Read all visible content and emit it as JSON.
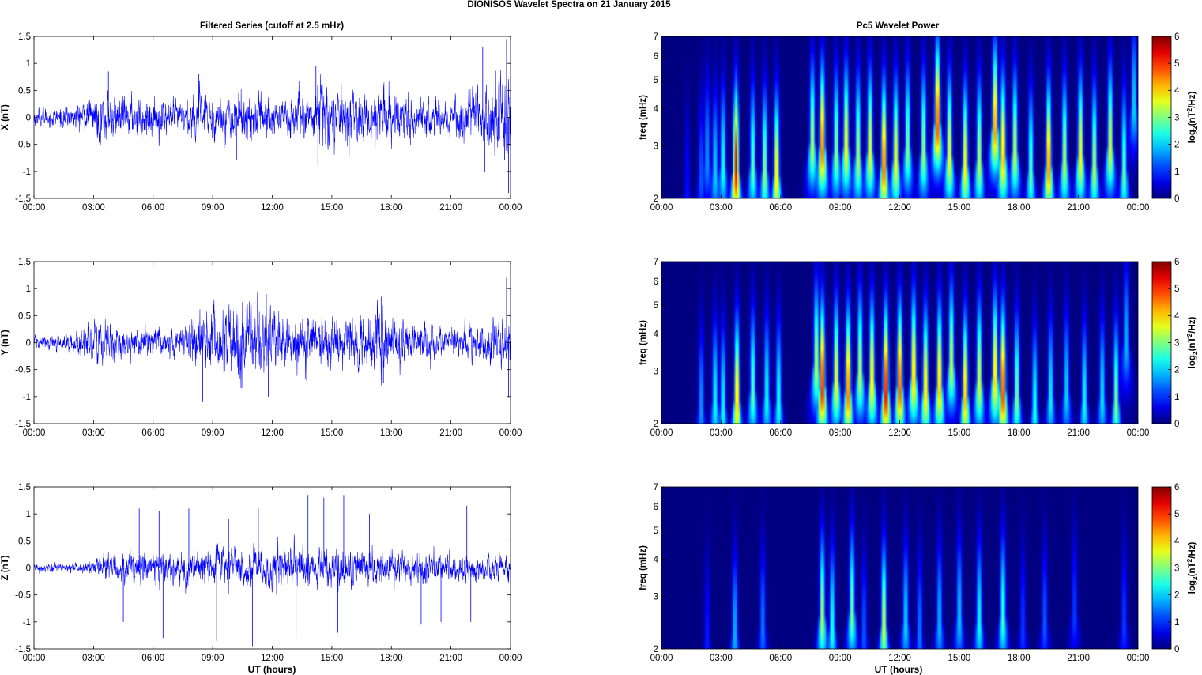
{
  "figure": {
    "title": "DIONISOS Wavelet Spectra on 21 January   2015",
    "left_title": "Filtered Series (cutoff at 2.5 mHz)",
    "right_title": "Pc5 Wavelet Power",
    "xlabel": "UT (hours)",
    "colorbar_label": "log2(nT2/Hz)"
  },
  "chart_data": [
    {
      "type": "line",
      "ylabel": "X (nT)",
      "xlim": [
        0,
        24
      ],
      "ylim": [
        -1.5,
        1.5
      ],
      "xticks": [
        "00:00",
        "03:00",
        "06:00",
        "09:00",
        "12:00",
        "15:00",
        "18:00",
        "21:00",
        "00:00"
      ],
      "yticks": [
        "1.5",
        "1",
        "0.5",
        "0",
        "-0.5",
        "-1",
        "-1.5"
      ],
      "series": [
        {
          "color": "#0000ff",
          "envelope": [
            [
              0,
              0.15
            ],
            [
              2,
              0.2
            ],
            [
              2.6,
              0.3
            ],
            [
              3.7,
              0.5
            ],
            [
              4,
              0.35
            ],
            [
              6,
              0.35
            ],
            [
              7.5,
              0.25
            ],
            [
              8.3,
              0.45
            ],
            [
              9.5,
              0.35
            ],
            [
              10.5,
              0.45
            ],
            [
              12,
              0.4
            ],
            [
              14,
              0.4
            ],
            [
              14.4,
              0.8
            ],
            [
              15,
              0.45
            ],
            [
              17,
              0.45
            ],
            [
              17.4,
              0.6
            ],
            [
              18,
              0.4
            ],
            [
              21,
              0.35
            ],
            [
              22.5,
              0.5
            ],
            [
              23,
              0.6
            ],
            [
              23.6,
              0.7
            ],
            [
              24,
              0.6
            ]
          ],
          "spikes": [
            [
              3.75,
              0.85
            ],
            [
              8.3,
              0.8
            ],
            [
              14.2,
              0.95
            ],
            [
              14.3,
              -0.9
            ],
            [
              10.2,
              -0.8
            ],
            [
              22.6,
              1.3
            ],
            [
              22.7,
              -1.0
            ],
            [
              23.8,
              1.45
            ],
            [
              23.9,
              -1.4
            ],
            [
              23.7,
              -0.8
            ]
          ]
        }
      ]
    },
    {
      "type": "line",
      "ylabel": "Y (nT)",
      "xlim": [
        0,
        24
      ],
      "ylim": [
        -1.5,
        1.5
      ],
      "xticks": [
        "00:00",
        "03:00",
        "06:00",
        "09:00",
        "12:00",
        "15:00",
        "18:00",
        "21:00",
        "00:00"
      ],
      "yticks": [
        "1.5",
        "1",
        "0.5",
        "0",
        "-0.5",
        "-1",
        "-1.5"
      ],
      "series": [
        {
          "color": "#0000ff",
          "envelope": [
            [
              0,
              0.1
            ],
            [
              2,
              0.15
            ],
            [
              2.5,
              0.3
            ],
            [
              3.7,
              0.45
            ],
            [
              4.5,
              0.25
            ],
            [
              7.5,
              0.25
            ],
            [
              8.2,
              0.55
            ],
            [
              9.5,
              0.6
            ],
            [
              10.5,
              0.7
            ],
            [
              11.5,
              0.75
            ],
            [
              12.5,
              0.5
            ],
            [
              14,
              0.45
            ],
            [
              17,
              0.5
            ],
            [
              17.4,
              0.7
            ],
            [
              18,
              0.45
            ],
            [
              21,
              0.25
            ],
            [
              23,
              0.4
            ],
            [
              24,
              0.5
            ]
          ],
          "spikes": [
            [
              8.5,
              -1.1
            ],
            [
              11.7,
              0.9
            ],
            [
              11.8,
              -1.0
            ],
            [
              17.5,
              0.85
            ],
            [
              17.6,
              -0.75
            ],
            [
              23.8,
              1.2
            ],
            [
              23.9,
              -1.0
            ]
          ]
        }
      ]
    },
    {
      "type": "line",
      "ylabel": "Z (nT)",
      "xlim": [
        0,
        24
      ],
      "ylim": [
        -1.5,
        1.5
      ],
      "xticks": [
        "00:00",
        "03:00",
        "06:00",
        "09:00",
        "12:00",
        "15:00",
        "18:00",
        "21:00",
        "00:00"
      ],
      "yticks": [
        "1.5",
        "1",
        "0.5",
        "0",
        "-0.5",
        "-1",
        "-1.5"
      ],
      "series": [
        {
          "color": "#0000ff",
          "envelope": [
            [
              0,
              0.07
            ],
            [
              3,
              0.1
            ],
            [
              3.6,
              0.25
            ],
            [
              5,
              0.3
            ],
            [
              8,
              0.3
            ],
            [
              10,
              0.35
            ],
            [
              12,
              0.35
            ],
            [
              15,
              0.35
            ],
            [
              18,
              0.3
            ],
            [
              21,
              0.25
            ],
            [
              24,
              0.25
            ]
          ],
          "spikes": [
            [
              5.3,
              1.1
            ],
            [
              6.3,
              1.05
            ],
            [
              7.8,
              1.1
            ],
            [
              9.8,
              0.9
            ],
            [
              11.3,
              1.1
            ],
            [
              11.0,
              -1.45
            ],
            [
              12.8,
              1.25
            ],
            [
              13.8,
              1.35
            ],
            [
              14.6,
              1.3
            ],
            [
              15.6,
              1.35
            ],
            [
              6.5,
              -1.3
            ],
            [
              9.2,
              -1.35
            ],
            [
              13.2,
              -1.3
            ],
            [
              15.3,
              -1.2
            ],
            [
              21.8,
              1.15
            ],
            [
              22.0,
              -1.0
            ],
            [
              16.9,
              1.0
            ],
            [
              19.5,
              -1.05
            ],
            [
              20.5,
              -1.0
            ],
            [
              4.5,
              -1.0
            ]
          ]
        }
      ]
    },
    {
      "type": "heatmap",
      "ylabel": "freq (mHz)",
      "yscale": "log",
      "xlim": [
        0,
        24
      ],
      "ylim": [
        2,
        7
      ],
      "yticks": [
        "2",
        "3",
        "4",
        "5",
        "6",
        "7"
      ],
      "clim": [
        0,
        6
      ],
      "colorbar_ticks": [
        "6",
        "5",
        "4",
        "3",
        "2",
        "1",
        "0"
      ],
      "features": [
        [
          1.3,
          2.2,
          0.9
        ],
        [
          2.0,
          2.4,
          1.4
        ],
        [
          2.3,
          2.8,
          1.8
        ],
        [
          2.7,
          2.5,
          2.2
        ],
        [
          3.1,
          2.6,
          2.6
        ],
        [
          3.75,
          2.5,
          5.5
        ],
        [
          4.6,
          2.6,
          3.0
        ],
        [
          5.2,
          2.5,
          3.3
        ],
        [
          5.8,
          2.4,
          4.2
        ],
        [
          7.6,
          3.1,
          3.5
        ],
        [
          8.1,
          3.0,
          5.0
        ],
        [
          8.8,
          2.9,
          3.3
        ],
        [
          9.3,
          3.0,
          4.0
        ],
        [
          9.9,
          2.8,
          3.5
        ],
        [
          10.5,
          2.9,
          4.0
        ],
        [
          11.2,
          2.6,
          5.0
        ],
        [
          11.8,
          2.7,
          4.0
        ],
        [
          12.4,
          3.0,
          3.2
        ],
        [
          13.2,
          2.9,
          3.4
        ],
        [
          13.9,
          3.6,
          5.2
        ],
        [
          14.5,
          2.8,
          4.0
        ],
        [
          15.3,
          2.6,
          4.2
        ],
        [
          16.0,
          2.7,
          3.6
        ],
        [
          16.8,
          3.5,
          4.8
        ],
        [
          17.2,
          2.8,
          4.5
        ],
        [
          17.8,
          2.9,
          3.6
        ],
        [
          18.6,
          2.5,
          3.0
        ],
        [
          19.5,
          2.6,
          4.8
        ],
        [
          20.3,
          2.7,
          3.5
        ],
        [
          21.1,
          2.8,
          4.1
        ],
        [
          21.8,
          2.6,
          3.5
        ],
        [
          22.6,
          3.0,
          3.8
        ],
        [
          23.3,
          2.5,
          3.0
        ],
        [
          23.8,
          4.2,
          2.2
        ]
      ]
    },
    {
      "type": "heatmap",
      "ylabel": "freq (mHz)",
      "yscale": "log",
      "xlim": [
        0,
        24
      ],
      "ylim": [
        2,
        7
      ],
      "yticks": [
        "2",
        "3",
        "4",
        "5",
        "6",
        "7"
      ],
      "clim": [
        0,
        6
      ],
      "colorbar_ticks": [
        "6",
        "5",
        "4",
        "3",
        "2",
        "1",
        "0"
      ],
      "features": [
        [
          2.0,
          2.3,
          1.8
        ],
        [
          2.7,
          2.4,
          2.5
        ],
        [
          3.1,
          2.3,
          2.5
        ],
        [
          3.8,
          2.4,
          4.4
        ],
        [
          4.6,
          2.6,
          3.0
        ],
        [
          5.3,
          2.5,
          2.5
        ],
        [
          5.9,
          2.4,
          2.6
        ],
        [
          7.8,
          3.2,
          3.5
        ],
        [
          8.1,
          2.7,
          5.5
        ],
        [
          8.8,
          2.8,
          4.0
        ],
        [
          9.4,
          2.6,
          5.0
        ],
        [
          10.0,
          3.0,
          3.6
        ],
        [
          10.6,
          2.8,
          4.2
        ],
        [
          11.3,
          2.6,
          5.7
        ],
        [
          12.0,
          2.7,
          5.2
        ],
        [
          12.7,
          2.9,
          4.4
        ],
        [
          13.3,
          2.6,
          4.3
        ],
        [
          14.0,
          2.7,
          4.5
        ],
        [
          14.6,
          3.2,
          3.6
        ],
        [
          15.3,
          2.5,
          4.6
        ],
        [
          16.0,
          2.8,
          3.8
        ],
        [
          16.8,
          2.9,
          4.4
        ],
        [
          17.2,
          2.6,
          5.3
        ],
        [
          17.9,
          2.5,
          3.2
        ],
        [
          18.8,
          2.3,
          2.6
        ],
        [
          19.6,
          2.5,
          2.4
        ],
        [
          20.4,
          2.6,
          2.2
        ],
        [
          21.3,
          2.4,
          2.5
        ],
        [
          22.2,
          2.5,
          2.3
        ],
        [
          22.9,
          2.4,
          3.2
        ],
        [
          23.4,
          3.8,
          2.0
        ]
      ]
    },
    {
      "type": "heatmap",
      "ylabel": "freq (mHz)",
      "yscale": "log",
      "xlim": [
        0,
        24
      ],
      "ylim": [
        2,
        7
      ],
      "yticks": [
        "2",
        "3",
        "4",
        "5",
        "6",
        "7"
      ],
      "clim": [
        0,
        6
      ],
      "colorbar_ticks": [
        "6",
        "5",
        "4",
        "3",
        "2",
        "1",
        "0"
      ],
      "features": [
        [
          2.3,
          2.2,
          1.0
        ],
        [
          3.7,
          2.3,
          2.0
        ],
        [
          5.1,
          2.4,
          1.6
        ],
        [
          8.1,
          2.6,
          3.5
        ],
        [
          8.6,
          2.4,
          2.6
        ],
        [
          9.6,
          2.7,
          3.2
        ],
        [
          10.2,
          2.3,
          1.4
        ],
        [
          11.2,
          2.4,
          3.6
        ],
        [
          12.3,
          2.5,
          2.2
        ],
        [
          13.0,
          2.3,
          1.6
        ],
        [
          14.0,
          2.5,
          2.0
        ],
        [
          15.0,
          2.6,
          2.1
        ],
        [
          16.0,
          2.5,
          2.5
        ],
        [
          17.2,
          2.6,
          2.8
        ],
        [
          18.2,
          2.4,
          1.2
        ],
        [
          19.3,
          2.5,
          1.4
        ],
        [
          20.8,
          2.7,
          1.2
        ],
        [
          23.3,
          2.5,
          1.2
        ]
      ]
    }
  ]
}
